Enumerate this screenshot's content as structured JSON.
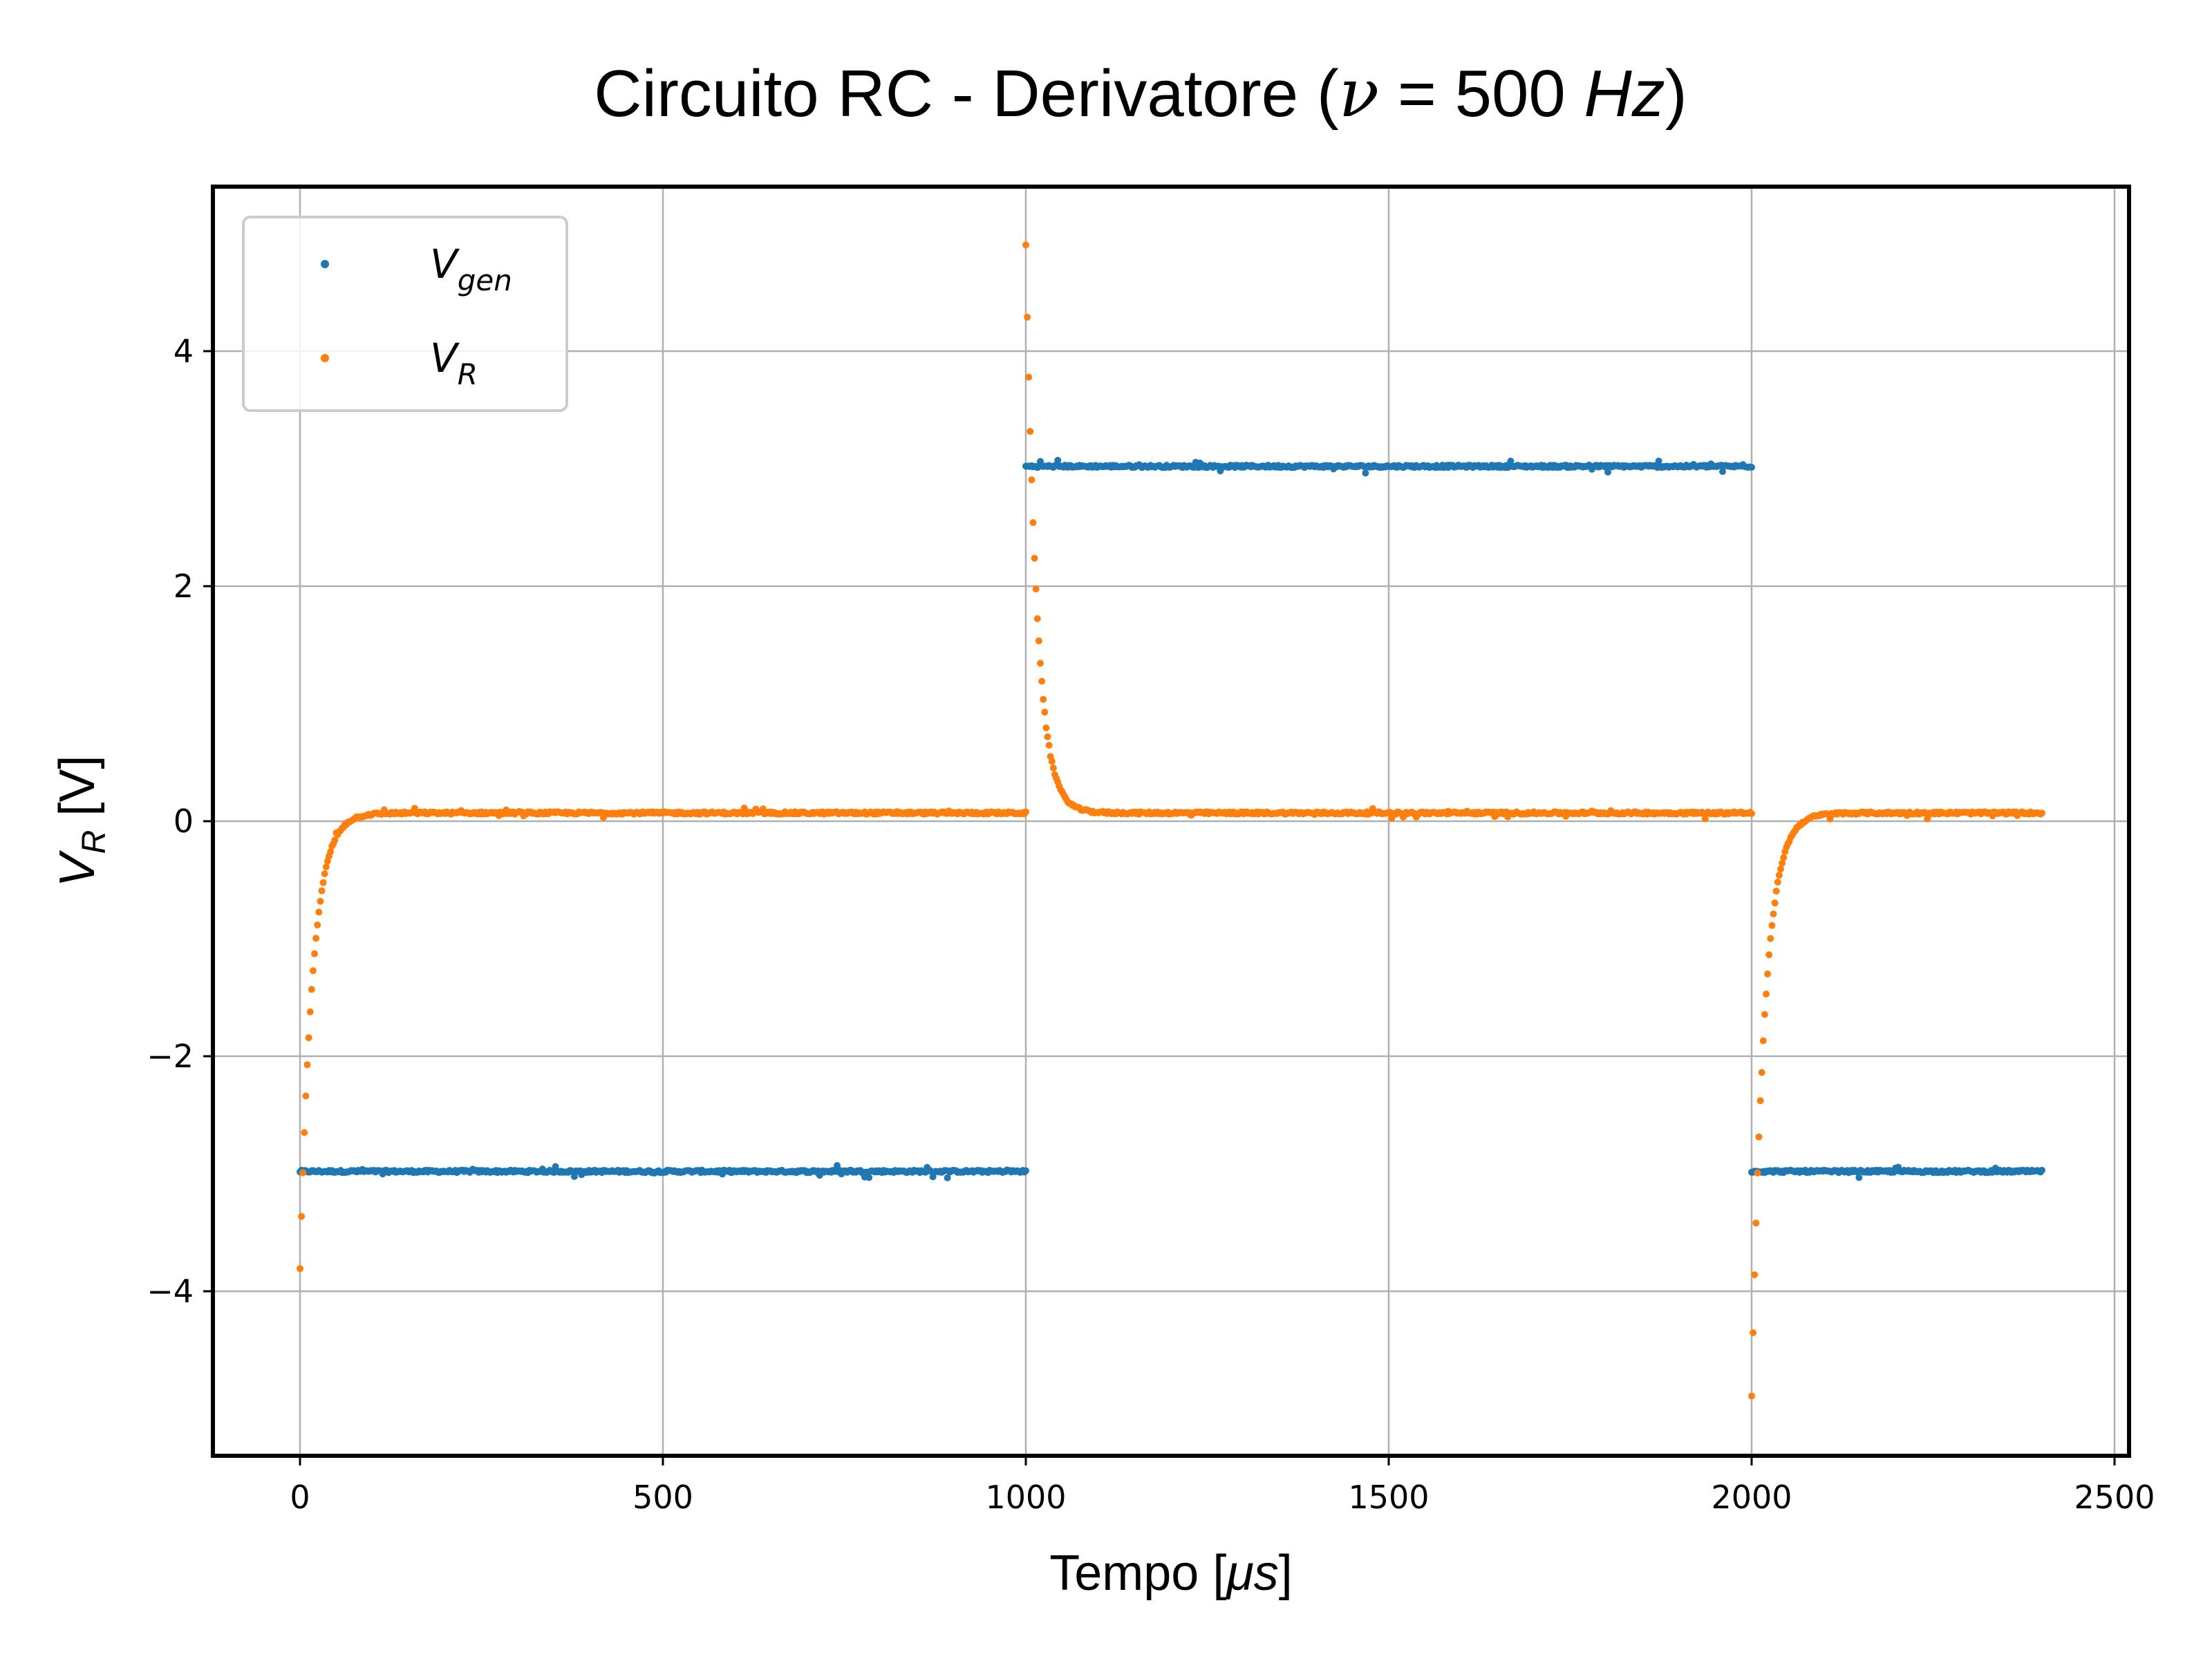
{
  "chart_data": {
    "type": "scatter",
    "title": "Circuito RC - Derivatore (ν = 500 Hz)",
    "title_parts": {
      "prefix": "Circuito RC - Derivatore (",
      "nu": "ν",
      "eq": " = 500 ",
      "unit": "Hz",
      "suffix": ")"
    },
    "xlabel": "Tempo [μs]",
    "xlabel_parts": {
      "prefix": "Tempo [",
      "unit": "μs",
      "suffix": "]"
    },
    "ylabel": "V_R [V]",
    "ylabel_parts": {
      "main": "V",
      "sub": "R",
      "rest": " [V]"
    },
    "xlim": [
      -120,
      2520
    ],
    "ylim": [
      -5.4,
      5.4
    ],
    "xticks": [
      0,
      500,
      1000,
      1500,
      2000,
      2500
    ],
    "xtick_labels": [
      "0",
      "500",
      "1000",
      "1500",
      "2000",
      "2500"
    ],
    "yticks": [
      -4,
      -2,
      0,
      2,
      4
    ],
    "ytick_labels": [
      "−4",
      "−2",
      "0",
      "2",
      "4"
    ],
    "grid": true,
    "legend_position": "upper-left",
    "series": [
      {
        "name": "V_gen",
        "label_main": "V",
        "label_sub": "gen",
        "color": "#1f77b4",
        "segments": [
          {
            "t_start": 0,
            "t_end": 1000,
            "level": -2.98
          },
          {
            "t_start": 1000,
            "t_end": 2000,
            "level": 3.02
          },
          {
            "t_start": 2000,
            "t_end": 2400,
            "level": -2.98
          }
        ],
        "sample_step_us": 2
      },
      {
        "name": "V_R",
        "label_main": "V",
        "label_sub": "R",
        "color": "#ff7f0e",
        "segments": [
          {
            "t_start": 0,
            "t_end": 1000,
            "start_value": -3.8,
            "end_value": 0.07,
            "tau_us": 17
          },
          {
            "t_start": 1000,
            "t_end": 2000,
            "start_value": 4.9,
            "end_value": 0.07,
            "tau_us": 15
          },
          {
            "t_start": 2000,
            "t_end": 2400,
            "start_value": -4.9,
            "end_value": 0.07,
            "tau_us": 17
          }
        ],
        "sample_step_us": 2
      }
    ]
  }
}
